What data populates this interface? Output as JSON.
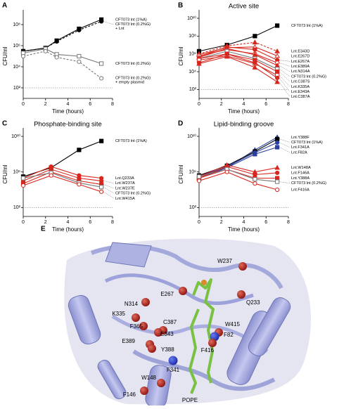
{
  "chart_data": [
    {
      "type": "line",
      "label": "A",
      "x_label": "Time (hours)",
      "y_label": "CFU/ml",
      "log_y": true,
      "threshold": 100,
      "x": [
        0,
        2,
        3,
        5,
        7
      ],
      "xlim": [
        0,
        8
      ],
      "xticks": [
        0,
        2,
        4,
        6,
        8
      ],
      "ylim": [
        10,
        1000000000
      ],
      "yticks": [
        {
          "value": 100,
          "label": "10²"
        },
        {
          "value": 10000,
          "label": "10⁴"
        },
        {
          "value": 1000000,
          "label": "10⁶"
        },
        {
          "value": 100000000,
          "label": "10⁸"
        }
      ],
      "series": [
        {
          "name": "CFT073 lnt (1%A)",
          "color": "#000000",
          "marker": "square",
          "dash": false,
          "values": [
            300000,
            600000,
            3000000,
            40000000,
            300000000
          ]
        },
        {
          "name": "CFT073 lnt (0.2%G) + Lnt",
          "color": "#000000",
          "marker": "circle",
          "dash": true,
          "values": [
            300000,
            600000,
            2500000,
            30000000,
            200000000
          ]
        },
        {
          "name": "CFT073 lnt (0.2%G)",
          "color": "#777777",
          "marker": "open-square",
          "dash": false,
          "values": [
            200000,
            500000,
            150000,
            100000,
            20000
          ]
        },
        {
          "name": "CFT073 lnt (0.2%G) + empty plasmid",
          "color": "#777777",
          "marker": "open-circle",
          "dash": true,
          "values": [
            100000,
            300000,
            80000,
            30000,
            800
          ]
        }
      ]
    },
    {
      "type": "line",
      "label": "B",
      "title": "Active site",
      "x_label": "Time (hours)",
      "y_label": "CFU/ml",
      "log_y": true,
      "threshold": 100,
      "x": [
        0,
        2.5,
        5,
        7
      ],
      "xlim": [
        0,
        8
      ],
      "xticks": [
        0,
        2,
        4,
        6,
        8
      ],
      "ylim": [
        10,
        30000000000
      ],
      "yticks": [
        {
          "value": 100,
          "label": "10²"
        },
        {
          "value": 10000,
          "label": "10⁴"
        },
        {
          "value": 1000000,
          "label": "10⁶"
        },
        {
          "value": 100000000,
          "label": "10⁸"
        },
        {
          "value": 10000000000,
          "label": "10¹⁰"
        }
      ],
      "series": [
        {
          "name": "CFT073 lnt (1%A)",
          "color": "#000000",
          "marker": "square",
          "dash": false,
          "values": [
            2000000,
            10000000,
            100000000,
            1500000000
          ]
        },
        {
          "name": "Lnt.E343D",
          "color": "#d7261e",
          "marker": "triangle",
          "dash": true,
          "values": [
            1000000,
            8000000,
            20000000,
            2000000
          ]
        },
        {
          "name": "Lnt.E267D",
          "color": "#d7261e",
          "marker": "open-triangle",
          "dash": false,
          "values": [
            800000,
            5000000,
            6000000,
            600000
          ]
        },
        {
          "name": "Lnt.E267A",
          "color": "#d7261e",
          "marker": "circle",
          "dash": false,
          "values": [
            500000,
            6000000,
            3000000,
            200000
          ]
        },
        {
          "name": "Lnt.E389A",
          "color": "#d7261e",
          "marker": "open-circle",
          "dash": false,
          "values": [
            600000,
            3000000,
            1000000,
            100000
          ]
        },
        {
          "name": "Lnt.N314A",
          "color": "#d7261e",
          "marker": "triangle",
          "dash": false,
          "values": [
            400000,
            4000000,
            800000,
            50000
          ]
        },
        {
          "name": "CFT073 lnt (0.2%G)",
          "color": "#777777",
          "marker": "open-square",
          "dash": false,
          "values": [
            300000,
            2000000,
            300000,
            20000
          ]
        },
        {
          "name": "Lnt.C387S",
          "color": "#d7261e",
          "marker": "square",
          "dash": false,
          "values": [
            300000,
            1000000,
            200000,
            10000
          ]
        },
        {
          "name": "Lnt.K335A",
          "color": "#d7261e",
          "marker": "open-square",
          "dash": false,
          "values": [
            200000,
            600000,
            80000,
            4000
          ]
        },
        {
          "name": "Lnt.E343A",
          "color": "#d7261e",
          "marker": "circle",
          "dash": false,
          "values": [
            100000,
            1000000,
            100000,
            2000
          ]
        },
        {
          "name": "Lnt.C387A",
          "color": "#d7261e",
          "marker": "triangle",
          "dash": false,
          "values": [
            80000,
            500000,
            30000,
            700
          ]
        }
      ]
    },
    {
      "type": "line",
      "label": "C",
      "title": "Phosphate-binding site",
      "x_label": "Time (hours)",
      "y_label": "CFU/ml",
      "log_y": true,
      "threshold": 100,
      "x": [
        0,
        2.5,
        5,
        7
      ],
      "xlim": [
        0,
        8
      ],
      "xticks": [
        0,
        2,
        4,
        6,
        8
      ],
      "ylim": [
        10,
        30000000000
      ],
      "yticks": [
        {
          "value": 100,
          "label": "10²"
        },
        {
          "value": 1000000,
          "label": "10⁶"
        },
        {
          "value": 10000000000,
          "label": "10¹⁰"
        }
      ],
      "series": [
        {
          "name": "CFT073 lnt (1%A)",
          "color": "#000000",
          "marker": "square",
          "dash": false,
          "values": [
            300000,
            3000000,
            300000000,
            3000000000
          ]
        },
        {
          "name": "Lnt.Q233A",
          "color": "#d7261e",
          "marker": "circle",
          "dash": false,
          "values": [
            200000,
            4000000,
            400000,
            200000
          ]
        },
        {
          "name": "Lnt.W237A",
          "color": "#d7261e",
          "marker": "circle",
          "dash": false,
          "values": [
            100000,
            2000000,
            200000,
            100000
          ]
        },
        {
          "name": "Lnt.W237E",
          "color": "#d7261e",
          "marker": "square",
          "dash": false,
          "values": [
            50000,
            1000000,
            100000,
            40000
          ]
        },
        {
          "name": "CFT073 lnt (0.2%G)",
          "color": "#777777",
          "marker": "open-square",
          "dash": false,
          "values": [
            200000,
            800000,
            60000,
            20000
          ]
        },
        {
          "name": "Lnt.W415A",
          "color": "#d7261e",
          "marker": "open-circle",
          "dash": false,
          "values": [
            30000,
            400000,
            40000,
            6000
          ]
        }
      ]
    },
    {
      "type": "line",
      "label": "D",
      "title": "Lipid-binding groove",
      "x_label": "Time (hours)",
      "y_label": "CFU/ml",
      "log_y": true,
      "threshold": 100,
      "x": [
        0,
        2.5,
        5,
        7
      ],
      "xlim": [
        0,
        8
      ],
      "xticks": [
        0,
        2,
        4,
        6,
        8
      ],
      "ylim": [
        10,
        30000000000
      ],
      "yticks": [
        {
          "value": 100,
          "label": "10²"
        },
        {
          "value": 1000000,
          "label": "10⁶"
        },
        {
          "value": 10000000000,
          "label": "10¹⁰"
        }
      ],
      "series": [
        {
          "name": "Lnt.Y388F",
          "color": "#2b3f9e",
          "marker": "triangle",
          "dash": false,
          "values": [
            200000,
            3000000,
            300000000,
            8000000000
          ]
        },
        {
          "name": "CFT073 lnt (1%A)",
          "color": "#000000",
          "marker": "square",
          "dash": false,
          "values": [
            400000,
            5000000,
            200000000,
            5000000000
          ]
        },
        {
          "name": "Lnt.F341A",
          "color": "#2b3f9e",
          "marker": "circle",
          "dash": false,
          "values": [
            300000,
            4000000,
            150000000,
            2000000000
          ]
        },
        {
          "name": "Lnt.F82A",
          "color": "#2b3f9e",
          "marker": "square",
          "dash": false,
          "values": [
            200000,
            3000000,
            100000000,
            600000000
          ]
        },
        {
          "name": "Lnt.W148A",
          "color": "#d7261e",
          "marker": "triangle",
          "dash": false,
          "values": [
            300000,
            6000000,
            1000000,
            3000000
          ]
        },
        {
          "name": "Lnt.F146A",
          "color": "#d7261e",
          "marker": "circle",
          "dash": false,
          "values": [
            200000,
            4000000,
            500000,
            800000
          ]
        },
        {
          "name": "Lnt.Y388A",
          "color": "#d7261e",
          "marker": "square",
          "dash": false,
          "values": [
            200000,
            2000000,
            200000,
            200000
          ]
        },
        {
          "name": "CFT073 lnt (0.2%G)",
          "color": "#777777",
          "marker": "open-square",
          "dash": false,
          "values": [
            300000,
            2000000,
            150000,
            80000
          ]
        },
        {
          "name": "Lnt.F416A",
          "color": "#d7261e",
          "marker": "open-circle",
          "dash": false,
          "values": [
            100000,
            1000000,
            50000,
            10000
          ]
        }
      ]
    }
  ],
  "structure": {
    "label": "E",
    "residues": [
      "W237",
      "Q233",
      "E267",
      "N314",
      "K335",
      "F365",
      "C387",
      "E343",
      "W415",
      "F82",
      "E389",
      "Y388",
      "F416",
      "F341",
      "W148",
      "F146"
    ],
    "ligand": "POPE"
  }
}
